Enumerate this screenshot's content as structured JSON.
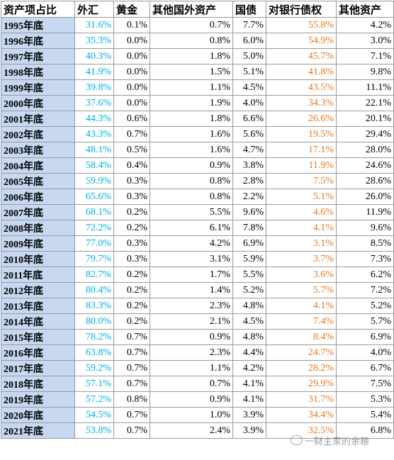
{
  "table": {
    "header": [
      "资产项占比",
      "外汇",
      "黄金",
      "其他国外资产",
      "国债",
      "对银行债权",
      "其他资产"
    ],
    "rows": [
      [
        "1995年底",
        "31.6%",
        "0.1%",
        "0.7%",
        "7.7%",
        "55.8%",
        "4.2%"
      ],
      [
        "1996年底",
        "35.3%",
        "0.0%",
        "0.8%",
        "6.0%",
        "54.9%",
        "3.0%"
      ],
      [
        "1997年底",
        "40.3%",
        "0.0%",
        "1.8%",
        "5.0%",
        "45.7%",
        "7.1%"
      ],
      [
        "1998年底",
        "41.9%",
        "0.0%",
        "1.5%",
        "5.1%",
        "41.8%",
        "9.8%"
      ],
      [
        "1999年底",
        "39.8%",
        "0.0%",
        "1.1%",
        "4.5%",
        "43.5%",
        "11.1%"
      ],
      [
        "2000年底",
        "37.6%",
        "0.0%",
        "1.9%",
        "4.0%",
        "34.3%",
        "22.1%"
      ],
      [
        "2001年底",
        "44.3%",
        "0.6%",
        "1.8%",
        "6.6%",
        "26.6%",
        "20.1%"
      ],
      [
        "2002年底",
        "43.3%",
        "0.7%",
        "1.6%",
        "5.6%",
        "19.5%",
        "29.4%"
      ],
      [
        "2003年底",
        "48.1%",
        "0.5%",
        "1.6%",
        "4.7%",
        "17.1%",
        "28.0%"
      ],
      [
        "2004年底",
        "58.4%",
        "0.4%",
        "0.9%",
        "3.8%",
        "11.9%",
        "24.6%"
      ],
      [
        "2005年底",
        "59.9%",
        "0.3%",
        "0.8%",
        "2.8%",
        "7.5%",
        "28.6%"
      ],
      [
        "2006年底",
        "65.6%",
        "0.3%",
        "0.8%",
        "2.2%",
        "5.1%",
        "26.0%"
      ],
      [
        "2007年底",
        "68.1%",
        "0.2%",
        "5.5%",
        "9.6%",
        "4.6%",
        "11.9%"
      ],
      [
        "2008年底",
        "72.2%",
        "0.2%",
        "6.1%",
        "7.8%",
        "4.1%",
        "9.6%"
      ],
      [
        "2009年底",
        "77.0%",
        "0.3%",
        "4.2%",
        "6.9%",
        "3.1%",
        "8.5%"
      ],
      [
        "2010年底",
        "79.7%",
        "0.3%",
        "3.1%",
        "5.9%",
        "3.7%",
        "7.3%"
      ],
      [
        "2011年底",
        "82.7%",
        "0.2%",
        "1.7%",
        "5.5%",
        "3.6%",
        "6.2%"
      ],
      [
        "2012年底",
        "80.4%",
        "0.2%",
        "1.4%",
        "5.2%",
        "5.7%",
        "7.2%"
      ],
      [
        "2013年底",
        "83.3%",
        "0.2%",
        "2.3%",
        "4.8%",
        "4.1%",
        "5.2%"
      ],
      [
        "2014年底",
        "80.0%",
        "0.2%",
        "2.1%",
        "4.5%",
        "7.4%",
        "5.7%"
      ],
      [
        "2015年底",
        "78.2%",
        "0.7%",
        "0.9%",
        "4.8%",
        "8.4%",
        "6.9%"
      ],
      [
        "2016年底",
        "63.8%",
        "0.7%",
        "2.3%",
        "4.4%",
        "24.7%",
        "4.0%"
      ],
      [
        "2017年底",
        "59.2%",
        "0.7%",
        "1.1%",
        "4.2%",
        "28.2%",
        "6.7%"
      ],
      [
        "2018年底",
        "57.1%",
        "0.7%",
        "0.7%",
        "4.1%",
        "29.9%",
        "7.5%"
      ],
      [
        "2019年底",
        "57.2%",
        "0.8%",
        "0.9%",
        "4.1%",
        "31.7%",
        "5.3%"
      ],
      [
        "2020年底",
        "54.5%",
        "0.7%",
        "1.0%",
        "3.9%",
        "34.4%",
        "5.4%"
      ],
      [
        "2021年底",
        "53.8%",
        "0.7%",
        "2.4%",
        "3.9%",
        "32.5%",
        "6.8%"
      ]
    ]
  },
  "watermark": "一财主家的余粮"
}
